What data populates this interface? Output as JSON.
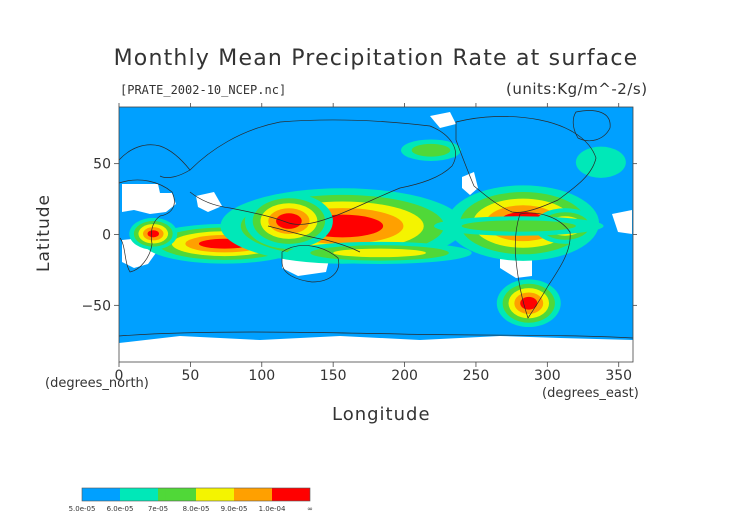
{
  "chart_data": {
    "type": "heatmap",
    "title": "Monthly Mean Precipitation Rate at surface",
    "subtitle": "[PRATE_2002-10_NCEP.nc]",
    "units": "(units:Kg/m^-2/s)",
    "xlabel": "Longitude",
    "ylabel": "Latitude",
    "x_unit_label": "(degrees_east)",
    "y_unit_label": "(degrees_north)",
    "xlim": [
      0,
      360
    ],
    "ylim": [
      -90,
      90
    ],
    "x_ticks": [
      0,
      50,
      100,
      150,
      200,
      250,
      300,
      350
    ],
    "x_tick_labels": [
      "0",
      "50",
      "100",
      "150",
      "200",
      "250",
      "300",
      "350"
    ],
    "y_ticks": [
      50,
      0,
      -50
    ],
    "y_tick_labels": [
      "50",
      "0",
      "−50"
    ],
    "colorscale": {
      "levels": [
        "5.0e-05",
        "6.0e-05",
        "7e-05",
        "8.0e-05",
        "9.0e-05",
        "1.0e-04",
        "∞"
      ],
      "colors": [
        "#00a0ff",
        "#00e8b8",
        "#50d838",
        "#f4f400",
        "#ffa000",
        "#ff0000"
      ]
    },
    "regions": [
      {
        "level": 5,
        "lon": [
          56,
          92
        ],
        "lat": [
          -3,
          -10
        ]
      },
      {
        "level": 5,
        "lon": [
          128,
          185
        ],
        "lat": [
          -2,
          14
        ]
      },
      {
        "level": 5,
        "lon": [
          266,
          300
        ],
        "lat": [
          0,
          16
        ]
      },
      {
        "level": 5,
        "lon": [
          281,
          293
        ],
        "lat": [
          -44,
          -53
        ]
      },
      {
        "level": 5,
        "lon": [
          20,
          28
        ],
        "lat": [
          -2,
          3
        ]
      },
      {
        "level": 5,
        "lon": [
          110,
          128
        ],
        "lat": [
          4,
          15
        ]
      },
      {
        "level": 4,
        "lon": [
          305,
          320
        ],
        "lat": [
          2,
          10
        ]
      },
      {
        "level": 3,
        "lon": [
          150,
          215
        ],
        "lat": [
          -10,
          -16
        ]
      },
      {
        "level": 2,
        "lon": [
          205,
          232
        ],
        "lat": [
          55,
          64
        ]
      },
      {
        "level": 2,
        "lon": [
          240,
          320
        ],
        "lat": [
          2,
          10
        ]
      },
      {
        "level": 1,
        "lon": [
          320,
          355
        ],
        "lat": [
          40,
          62
        ]
      }
    ]
  }
}
